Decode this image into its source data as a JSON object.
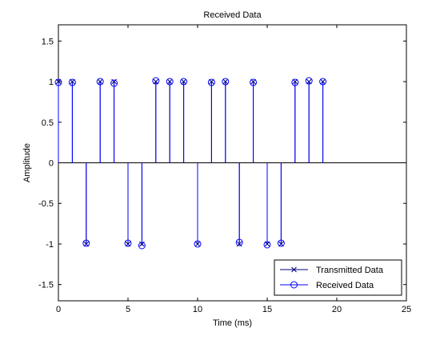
{
  "chart_data": {
    "type": "stem",
    "title": "Received Data",
    "xlabel": "Time (ms)",
    "ylabel": "Amplitude",
    "xlim": [
      0,
      25
    ],
    "ylim": [
      -1.7,
      1.7
    ],
    "xticks": [
      0,
      5,
      10,
      15,
      20,
      25
    ],
    "xtick_labels": [
      "0",
      "5",
      "10",
      "15",
      "20",
      "25"
    ],
    "yticks": [
      -1.5,
      -1,
      -0.5,
      0,
      0.5,
      1,
      1.5
    ],
    "ytick_labels": [
      "-1.5",
      "-1",
      "-0.5",
      "0",
      "0.5",
      "1",
      "1.5"
    ],
    "grid": false,
    "legend_position": "bottom-right",
    "x": [
      0,
      1,
      2,
      3,
      4,
      5,
      6,
      7,
      8,
      9,
      10,
      11,
      12,
      13,
      14,
      15,
      16,
      17,
      18,
      19
    ],
    "series": [
      {
        "name": "Transmitted Data",
        "marker": "x",
        "color": "#000080",
        "values": [
          1,
          1,
          -1,
          1,
          1,
          -1,
          -1,
          1,
          1,
          1,
          -1,
          1,
          1,
          -1,
          1,
          -1,
          -1,
          1,
          1,
          1
        ]
      },
      {
        "name": "Received Data",
        "marker": "o",
        "color": "#0000ff",
        "values": [
          0.99,
          0.99,
          -0.99,
          1.0,
          0.98,
          -0.99,
          -1.02,
          1.01,
          1.0,
          1.0,
          -1.0,
          0.99,
          1.0,
          -0.98,
          0.99,
          -1.01,
          -0.99,
          0.99,
          1.01,
          1.0
        ]
      }
    ]
  }
}
